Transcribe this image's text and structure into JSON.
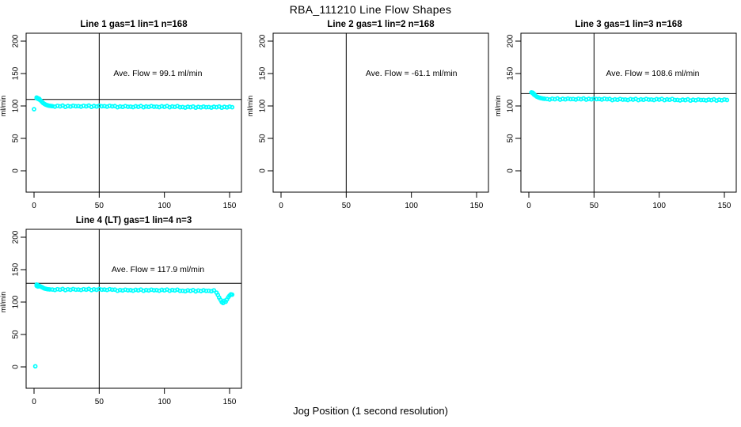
{
  "page_title": "RBA_111210  Line Flow Shapes",
  "x_axis_label": "Jog Position (1 second resolution)",
  "colors": {
    "points": "#00ffff",
    "axis": "#000000",
    "background": "#ffffff",
    "text": "#000000"
  },
  "chart_data": [
    {
      "type": "scatter",
      "title": "Line 1 gas=1 lin=1 n=168",
      "annotation": "Ave. Flow =  99.1  ml/min",
      "ave_flow_ml_min": 99.1,
      "n": 168,
      "ylabel": "ml/min",
      "x_ticks": [
        0,
        50,
        100,
        150
      ],
      "y_ticks": [
        0,
        50,
        100,
        150,
        200
      ],
      "xlim": [
        -6,
        160
      ],
      "ylim": [
        -33,
        212
      ],
      "grid": false,
      "v_line_x": 50,
      "h_line_y": 110,
      "annotation_pos": [
        95,
        150
      ],
      "points": [
        [
          0,
          95
        ],
        [
          2,
          113
        ],
        [
          2,
          112
        ],
        [
          3,
          112
        ],
        [
          3,
          111
        ],
        [
          4,
          111
        ],
        [
          4,
          110
        ],
        [
          5,
          108.5
        ],
        [
          6,
          106.5
        ],
        [
          7,
          104.5
        ],
        [
          8,
          103
        ],
        [
          9,
          102
        ],
        [
          10,
          101.2
        ],
        [
          11,
          100.6
        ],
        [
          12,
          100.2
        ],
        [
          13,
          100
        ],
        [
          14,
          99.7
        ],
        [
          16,
          98.9
        ],
        [
          18,
          100.2
        ],
        [
          20,
          99.4
        ],
        [
          22,
          100.6
        ],
        [
          24,
          98.7
        ],
        [
          26,
          100
        ],
        [
          28,
          99.2
        ],
        [
          30,
          100.4
        ],
        [
          32,
          99.5
        ],
        [
          34,
          99.7
        ],
        [
          36,
          98.9
        ],
        [
          38,
          100.2
        ],
        [
          40,
          99.4
        ],
        [
          42,
          100.6
        ],
        [
          44,
          98.7
        ],
        [
          46,
          100
        ],
        [
          48,
          99.2
        ],
        [
          50,
          100.4
        ],
        [
          52,
          99.5
        ],
        [
          54,
          99.7
        ],
        [
          56,
          98.9
        ],
        [
          58,
          100.2
        ],
        [
          60,
          99.4
        ],
        [
          62,
          99.9
        ],
        [
          64,
          98
        ],
        [
          66,
          99.3
        ],
        [
          68,
          98.5
        ],
        [
          70,
          99.7
        ],
        [
          72,
          98.8
        ],
        [
          74,
          99
        ],
        [
          76,
          98.2
        ],
        [
          78,
          99.5
        ],
        [
          80,
          98.7
        ],
        [
          82,
          99.9
        ],
        [
          84,
          98
        ],
        [
          86,
          99.3
        ],
        [
          88,
          98.5
        ],
        [
          90,
          99.7
        ],
        [
          92,
          98.8
        ],
        [
          94,
          99
        ],
        [
          96,
          98.2
        ],
        [
          98,
          99.5
        ],
        [
          100,
          98.7
        ],
        [
          102,
          99.9
        ],
        [
          104,
          98
        ],
        [
          106,
          99.3
        ],
        [
          108,
          98.5
        ],
        [
          110,
          99.7
        ],
        [
          112,
          98.1
        ],
        [
          114,
          98.3
        ],
        [
          116,
          97.5
        ],
        [
          118,
          98.8
        ],
        [
          120,
          98
        ],
        [
          122,
          99.2
        ],
        [
          124,
          97.3
        ],
        [
          126,
          98.6
        ],
        [
          128,
          97.8
        ],
        [
          130,
          99
        ],
        [
          132,
          98.1
        ],
        [
          134,
          98.3
        ],
        [
          136,
          97.5
        ],
        [
          138,
          98.8
        ],
        [
          140,
          98
        ],
        [
          142,
          99.2
        ],
        [
          144,
          97.3
        ],
        [
          146,
          98.6
        ],
        [
          148,
          97.8
        ],
        [
          150,
          99
        ],
        [
          152,
          98.1
        ]
      ]
    },
    {
      "type": "scatter",
      "title": "Line 2 gas=1 lin=2 n=168",
      "annotation": "Ave. Flow =  -61.1  ml/min",
      "ave_flow_ml_min": -61.1,
      "n": 168,
      "ylabel": "ml/min",
      "x_ticks": [
        0,
        50,
        100,
        150
      ],
      "y_ticks": [
        0,
        50,
        100,
        150,
        200
      ],
      "xlim": [
        -6,
        160
      ],
      "ylim": [
        -33,
        212
      ],
      "grid": false,
      "v_line_x": 50,
      "h_line_y": null,
      "annotation_pos": [
        100,
        150
      ],
      "points": []
    },
    {
      "type": "scatter",
      "title": "Line 3 gas=1 lin=3 n=168",
      "annotation": "Ave. Flow =  108.6  ml/min",
      "ave_flow_ml_min": 108.6,
      "n": 168,
      "ylabel": "ml/min",
      "x_ticks": [
        0,
        50,
        100,
        150
      ],
      "y_ticks": [
        0,
        50,
        100,
        150,
        200
      ],
      "xlim": [
        -6,
        160
      ],
      "ylim": [
        -33,
        212
      ],
      "grid": false,
      "v_line_x": 50,
      "h_line_y": 119,
      "annotation_pos": [
        95,
        150
      ],
      "points": [
        [
          2,
          121
        ],
        [
          3,
          120.5
        ],
        [
          3,
          119.5
        ],
        [
          4,
          118.5
        ],
        [
          4,
          117.5
        ],
        [
          5,
          116
        ],
        [
          6,
          114.5
        ],
        [
          7,
          113.5
        ],
        [
          8,
          112.8
        ],
        [
          9,
          112.2
        ],
        [
          10,
          111.8
        ],
        [
          11,
          111.4
        ],
        [
          12,
          111.1
        ],
        [
          14,
          110.7
        ],
        [
          16,
          109.9
        ],
        [
          18,
          111.2
        ],
        [
          20,
          110.4
        ],
        [
          22,
          111.6
        ],
        [
          24,
          109.7
        ],
        [
          26,
          111
        ],
        [
          28,
          110.2
        ],
        [
          30,
          111.4
        ],
        [
          32,
          110.5
        ],
        [
          34,
          110.7
        ],
        [
          36,
          109.9
        ],
        [
          38,
          111.2
        ],
        [
          40,
          110.4
        ],
        [
          42,
          111.6
        ],
        [
          44,
          109.7
        ],
        [
          46,
          111
        ],
        [
          48,
          110.2
        ],
        [
          50,
          111.4
        ],
        [
          52,
          110.5
        ],
        [
          54,
          110.7
        ],
        [
          56,
          109.9
        ],
        [
          58,
          111.2
        ],
        [
          60,
          110.4
        ],
        [
          62,
          110.9
        ],
        [
          64,
          109
        ],
        [
          66,
          110.3
        ],
        [
          68,
          109.5
        ],
        [
          70,
          110.7
        ],
        [
          72,
          109.8
        ],
        [
          74,
          110
        ],
        [
          76,
          109.2
        ],
        [
          78,
          110.5
        ],
        [
          80,
          109.7
        ],
        [
          82,
          110.9
        ],
        [
          84,
          109
        ],
        [
          86,
          110.3
        ],
        [
          88,
          109.5
        ],
        [
          90,
          110.7
        ],
        [
          92,
          109.8
        ],
        [
          94,
          110
        ],
        [
          96,
          109.2
        ],
        [
          98,
          110.5
        ],
        [
          100,
          109.7
        ],
        [
          102,
          110.9
        ],
        [
          104,
          109
        ],
        [
          106,
          110.3
        ],
        [
          108,
          109.5
        ],
        [
          110,
          110.7
        ],
        [
          112,
          109.1
        ],
        [
          114,
          109.3
        ],
        [
          116,
          108.5
        ],
        [
          118,
          109.8
        ],
        [
          120,
          109
        ],
        [
          122,
          110.2
        ],
        [
          124,
          108.3
        ],
        [
          126,
          109.6
        ],
        [
          128,
          108.8
        ],
        [
          130,
          110
        ],
        [
          132,
          109.1
        ],
        [
          134,
          109.3
        ],
        [
          136,
          108.5
        ],
        [
          138,
          109.8
        ],
        [
          140,
          109
        ],
        [
          142,
          110.2
        ],
        [
          144,
          108.3
        ],
        [
          146,
          109.6
        ],
        [
          148,
          108.8
        ],
        [
          150,
          110
        ],
        [
          152,
          109.1
        ]
      ]
    },
    {
      "type": "scatter",
      "title": "Line 4 (LT) gas=1 lin=4 n=3",
      "annotation": "Ave. Flow =  117.9  ml/min",
      "ave_flow_ml_min": 117.9,
      "n": 3,
      "ylabel": "ml/min",
      "x_ticks": [
        0,
        50,
        100,
        150
      ],
      "y_ticks": [
        0,
        50,
        100,
        150,
        200
      ],
      "xlim": [
        -6,
        160
      ],
      "ylim": [
        -33,
        212
      ],
      "grid": false,
      "v_line_x": 50,
      "h_line_y": 129,
      "annotation_pos": [
        95,
        150
      ],
      "points": [
        [
          1,
          1
        ],
        [
          2,
          127
        ],
        [
          2,
          125
        ],
        [
          3,
          126
        ],
        [
          3,
          124
        ],
        [
          4,
          125
        ],
        [
          5,
          124
        ],
        [
          6,
          123
        ],
        [
          7,
          122
        ],
        [
          8,
          121
        ],
        [
          9,
          120.5
        ],
        [
          10,
          120
        ],
        [
          11,
          119.8
        ],
        [
          12,
          119.5
        ],
        [
          14,
          119.4
        ],
        [
          16,
          118.6
        ],
        [
          18,
          119.9
        ],
        [
          20,
          119.1
        ],
        [
          22,
          120.3
        ],
        [
          24,
          118.4
        ],
        [
          26,
          119.7
        ],
        [
          28,
          118.9
        ],
        [
          30,
          120.1
        ],
        [
          32,
          119.2
        ],
        [
          34,
          119.4
        ],
        [
          36,
          118.6
        ],
        [
          38,
          119.9
        ],
        [
          40,
          119.1
        ],
        [
          42,
          120.3
        ],
        [
          44,
          118.4
        ],
        [
          46,
          119.7
        ],
        [
          48,
          118.9
        ],
        [
          50,
          120.1
        ],
        [
          52,
          119.2
        ],
        [
          54,
          119.4
        ],
        [
          56,
          118.6
        ],
        [
          58,
          119.9
        ],
        [
          60,
          119.1
        ],
        [
          62,
          119.3
        ],
        [
          64,
          117.4
        ],
        [
          66,
          118.7
        ],
        [
          68,
          117.9
        ],
        [
          70,
          119.1
        ],
        [
          72,
          118.2
        ],
        [
          74,
          118.4
        ],
        [
          76,
          117.6
        ],
        [
          78,
          118.9
        ],
        [
          80,
          118.1
        ],
        [
          82,
          119.3
        ],
        [
          84,
          117.4
        ],
        [
          86,
          118.7
        ],
        [
          88,
          117.9
        ],
        [
          90,
          119.1
        ],
        [
          92,
          118.2
        ],
        [
          94,
          118.4
        ],
        [
          96,
          117.6
        ],
        [
          98,
          118.9
        ],
        [
          100,
          118.1
        ],
        [
          102,
          119.3
        ],
        [
          104,
          117.4
        ],
        [
          106,
          118.7
        ],
        [
          108,
          117.9
        ],
        [
          110,
          119.1
        ],
        [
          112,
          117.3
        ],
        [
          114,
          117.5
        ],
        [
          116,
          116.7
        ],
        [
          118,
          118
        ],
        [
          120,
          117.2
        ],
        [
          122,
          118.4
        ],
        [
          124,
          116.5
        ],
        [
          126,
          117.8
        ],
        [
          128,
          117
        ],
        [
          130,
          118.2
        ],
        [
          132,
          117.3
        ],
        [
          134,
          117.5
        ],
        [
          136,
          116.7
        ],
        [
          138,
          118
        ],
        [
          140,
          114.5
        ],
        [
          141,
          111
        ],
        [
          142,
          107
        ],
        [
          143,
          103.5
        ],
        [
          144,
          100
        ],
        [
          145,
          98.5
        ],
        [
          146,
          102
        ],
        [
          147,
          100.5
        ],
        [
          148,
          104
        ],
        [
          149,
          107.5
        ],
        [
          150,
          110
        ],
        [
          151,
          112
        ],
        [
          152,
          111.5
        ]
      ]
    }
  ]
}
